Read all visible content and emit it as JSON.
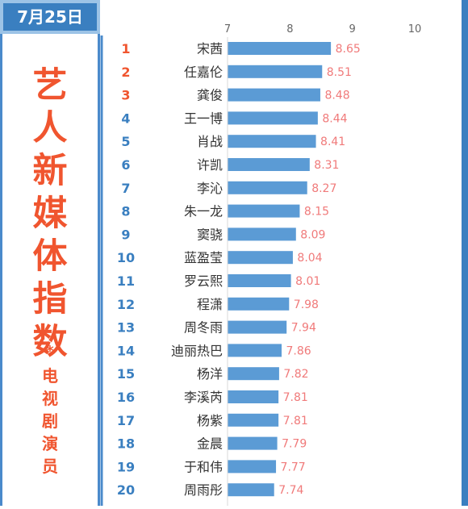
{
  "date": "7月25日",
  "title_chars": [
    "艺",
    "人",
    "新",
    "媒",
    "体",
    "指",
    "数"
  ],
  "asterisk": "*",
  "subtitle_chars": [
    "电",
    "视",
    "剧",
    "演",
    "员"
  ],
  "colors": {
    "accent": "#3a7fc0",
    "title": "#f0552f",
    "bar": "#5b9bd5",
    "value_label": "#f07a7a",
    "rank_top3": "#f0552f",
    "rank_other": "#3a7fc0"
  },
  "chart_data": {
    "type": "bar",
    "orientation": "horizontal",
    "xlim": [
      7,
      10
    ],
    "x_ticks": [
      7,
      8,
      9,
      10
    ],
    "ranks": [
      1,
      2,
      3,
      4,
      5,
      6,
      7,
      8,
      9,
      10,
      11,
      12,
      13,
      14,
      15,
      16,
      17,
      18,
      19,
      20
    ],
    "categories": [
      "宋茜",
      "任嘉伦",
      "龚俊",
      "王一博",
      "肖战",
      "许凯",
      "李沁",
      "朱一龙",
      "窦骁",
      "蓝盈莹",
      "罗云熙",
      "程潇",
      "周冬雨",
      "迪丽热巴",
      "杨洋",
      "李溪芮",
      "杨紫",
      "金晨",
      "于和伟",
      "周雨彤"
    ],
    "values": [
      8.65,
      8.51,
      8.48,
      8.44,
      8.41,
      8.31,
      8.27,
      8.15,
      8.09,
      8.04,
      8.01,
      7.98,
      7.94,
      7.86,
      7.82,
      7.81,
      7.81,
      7.79,
      7.77,
      7.74
    ]
  }
}
